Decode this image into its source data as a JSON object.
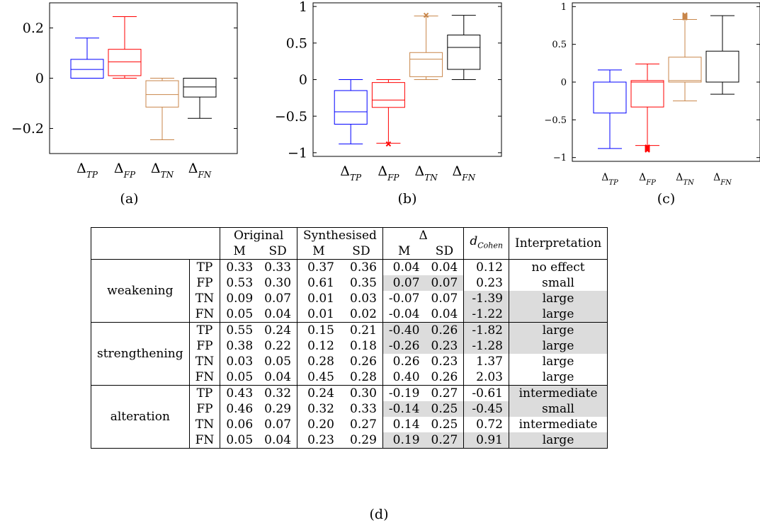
{
  "chart_data": [
    {
      "type": "box",
      "label": "(a)",
      "ylim": [
        -0.3,
        0.3
      ],
      "yticks": [
        -0.2,
        0,
        0.2
      ],
      "ytick_labels": [
        "−0.2",
        "0",
        "0.2"
      ],
      "categories": [
        "Δ_TP",
        "Δ_FP",
        "Δ_TN",
        "Δ_FN"
      ],
      "boxes": [
        {
          "name": "TP",
          "color": "#0000ff",
          "min": 0.0,
          "q1": 0.0,
          "median": 0.035,
          "q3": 0.075,
          "max": 0.16,
          "outliers": []
        },
        {
          "name": "FP",
          "color": "#ff0000",
          "min": 0.0,
          "q1": 0.01,
          "median": 0.065,
          "q3": 0.115,
          "max": 0.245,
          "outliers": []
        },
        {
          "name": "TN",
          "color": "#c8864a",
          "min": -0.245,
          "q1": -0.115,
          "median": -0.065,
          "q3": -0.01,
          "max": 0.0,
          "outliers": []
        },
        {
          "name": "FN",
          "color": "#000000",
          "min": -0.16,
          "q1": -0.075,
          "median": -0.035,
          "q3": 0.0,
          "max": 0.0,
          "outliers": []
        }
      ]
    },
    {
      "type": "box",
      "label": "(b)",
      "ylim": [
        -1.05,
        1.05
      ],
      "yticks": [
        -1,
        -0.5,
        0,
        0.5,
        1
      ],
      "ytick_labels": [
        "−1",
        "−0.5",
        "0",
        "0.5",
        "1"
      ],
      "categories": [
        "Δ_TP",
        "Δ_FP",
        "Δ_TN",
        "Δ_FN"
      ],
      "boxes": [
        {
          "name": "TP",
          "color": "#0000ff",
          "min": -0.88,
          "q1": -0.61,
          "median": -0.44,
          "q3": -0.15,
          "max": 0.0,
          "outliers": []
        },
        {
          "name": "FP",
          "color": "#ff0000",
          "min": -0.87,
          "q1": -0.38,
          "median": -0.28,
          "q3": -0.04,
          "max": 0.0,
          "outliers": [
            -0.88
          ]
        },
        {
          "name": "TN",
          "color": "#c8864a",
          "min": 0.0,
          "q1": 0.04,
          "median": 0.28,
          "q3": 0.37,
          "max": 0.87,
          "outliers": [
            0.88
          ]
        },
        {
          "name": "FN",
          "color": "#000000",
          "min": 0.0,
          "q1": 0.14,
          "median": 0.44,
          "q3": 0.61,
          "max": 0.88,
          "outliers": []
        }
      ]
    },
    {
      "type": "box",
      "label": "(c)",
      "ylim": [
        -1.05,
        1.05
      ],
      "yticks": [
        -1,
        -0.5,
        0,
        0.5,
        1
      ],
      "ytick_labels": [
        "−1",
        "−0.5",
        "0",
        "0.5",
        "1"
      ],
      "categories": [
        "Δ_TP",
        "Δ_FP",
        "Δ_TN",
        "Δ_FN"
      ],
      "boxes": [
        {
          "name": "TP",
          "color": "#0000ff",
          "min": -0.88,
          "q1": -0.41,
          "median": 0.0,
          "q3": 0.0,
          "max": 0.16,
          "outliers": []
        },
        {
          "name": "FP",
          "color": "#ff0000",
          "min": -0.84,
          "q1": -0.33,
          "median": 0.0,
          "q3": 0.02,
          "max": 0.24,
          "outliers": [
            -0.86,
            -0.87,
            -0.88,
            -0.89,
            -0.9
          ]
        },
        {
          "name": "TN",
          "color": "#c8864a",
          "min": -0.25,
          "q1": 0.0,
          "median": 0.02,
          "q3": 0.33,
          "max": 0.83,
          "outliers": [
            0.85,
            0.86,
            0.87,
            0.88,
            0.89
          ]
        },
        {
          "name": "FN",
          "color": "#000000",
          "min": -0.16,
          "q1": 0.0,
          "median": 0.0,
          "q3": 0.41,
          "max": 0.88,
          "outliers": []
        }
      ]
    }
  ],
  "captions": {
    "d": "(d)"
  },
  "table": {
    "headers": {
      "original": "Original",
      "synthesised": "Synthesised",
      "delta": "Δ",
      "m": "M",
      "sd": "SD",
      "d_cohen": "d",
      "d_cohen_sub": "Cohen",
      "interpretation": "Interpretation"
    },
    "groups": [
      {
        "name": "weakening",
        "rows": [
          {
            "type": "TP",
            "orig_m": "0.33",
            "orig_sd": "0.33",
            "syn_m": "0.37",
            "syn_sd": "0.36",
            "d_m": "0.04",
            "d_sd": "0.04",
            "cohen": "0.12",
            "interp": "no effect",
            "shade_delta": false,
            "shade_effect": false
          },
          {
            "type": "FP",
            "orig_m": "0.53",
            "orig_sd": "0.30",
            "syn_m": "0.61",
            "syn_sd": "0.35",
            "d_m": "0.07",
            "d_sd": "0.07",
            "cohen": "0.23",
            "interp": "small",
            "shade_delta": true,
            "shade_effect": false
          },
          {
            "type": "TN",
            "orig_m": "0.09",
            "orig_sd": "0.07",
            "syn_m": "0.01",
            "syn_sd": "0.03",
            "d_m": "-0.07",
            "d_sd": "0.07",
            "cohen": "-1.39",
            "interp": "large",
            "shade_delta": false,
            "shade_effect": true
          },
          {
            "type": "FN",
            "orig_m": "0.05",
            "orig_sd": "0.04",
            "syn_m": "0.01",
            "syn_sd": "0.02",
            "d_m": "-0.04",
            "d_sd": "0.04",
            "cohen": "-1.22",
            "interp": "large",
            "shade_delta": false,
            "shade_effect": true
          }
        ]
      },
      {
        "name": "strengthening",
        "rows": [
          {
            "type": "TP",
            "orig_m": "0.55",
            "orig_sd": "0.24",
            "syn_m": "0.15",
            "syn_sd": "0.21",
            "d_m": "-0.40",
            "d_sd": "0.26",
            "cohen": "-1.82",
            "interp": "large",
            "shade_delta": true,
            "shade_effect": true
          },
          {
            "type": "FP",
            "orig_m": "0.38",
            "orig_sd": "0.22",
            "syn_m": "0.12",
            "syn_sd": "0.18",
            "d_m": "-0.26",
            "d_sd": "0.23",
            "cohen": "-1.28",
            "interp": "large",
            "shade_delta": true,
            "shade_effect": true
          },
          {
            "type": "TN",
            "orig_m": "0.03",
            "orig_sd": "0.05",
            "syn_m": "0.28",
            "syn_sd": "0.26",
            "d_m": "0.26",
            "d_sd": "0.23",
            "cohen": "1.37",
            "interp": "large",
            "shade_delta": false,
            "shade_effect": false
          },
          {
            "type": "FN",
            "orig_m": "0.05",
            "orig_sd": "0.04",
            "syn_m": "0.45",
            "syn_sd": "0.28",
            "d_m": "0.40",
            "d_sd": "0.26",
            "cohen": "2.03",
            "interp": "large",
            "shade_delta": false,
            "shade_effect": false
          }
        ]
      },
      {
        "name": "alteration",
        "rows": [
          {
            "type": "TP",
            "orig_m": "0.43",
            "orig_sd": "0.32",
            "syn_m": "0.24",
            "syn_sd": "0.30",
            "d_m": "-0.19",
            "d_sd": "0.27",
            "cohen": "-0.61",
            "interp": "intermediate",
            "shade_delta": false,
            "shade_effect": false,
            "shade_interp": true
          },
          {
            "type": "FP",
            "orig_m": "0.46",
            "orig_sd": "0.29",
            "syn_m": "0.32",
            "syn_sd": "0.33",
            "d_m": "-0.14",
            "d_sd": "0.25",
            "cohen": "-0.45",
            "interp": "small",
            "shade_delta": true,
            "shade_effect": true
          },
          {
            "type": "TN",
            "orig_m": "0.06",
            "orig_sd": "0.07",
            "syn_m": "0.20",
            "syn_sd": "0.27",
            "d_m": "0.14",
            "d_sd": "0.25",
            "cohen": "0.72",
            "interp": "intermediate",
            "shade_delta": false,
            "shade_effect": false
          },
          {
            "type": "FN",
            "orig_m": "0.05",
            "orig_sd": "0.04",
            "syn_m": "0.23",
            "syn_sd": "0.29",
            "d_m": "0.19",
            "d_sd": "0.27",
            "cohen": "0.91",
            "interp": "large",
            "shade_delta": true,
            "shade_effect": true
          }
        ]
      }
    ]
  }
}
